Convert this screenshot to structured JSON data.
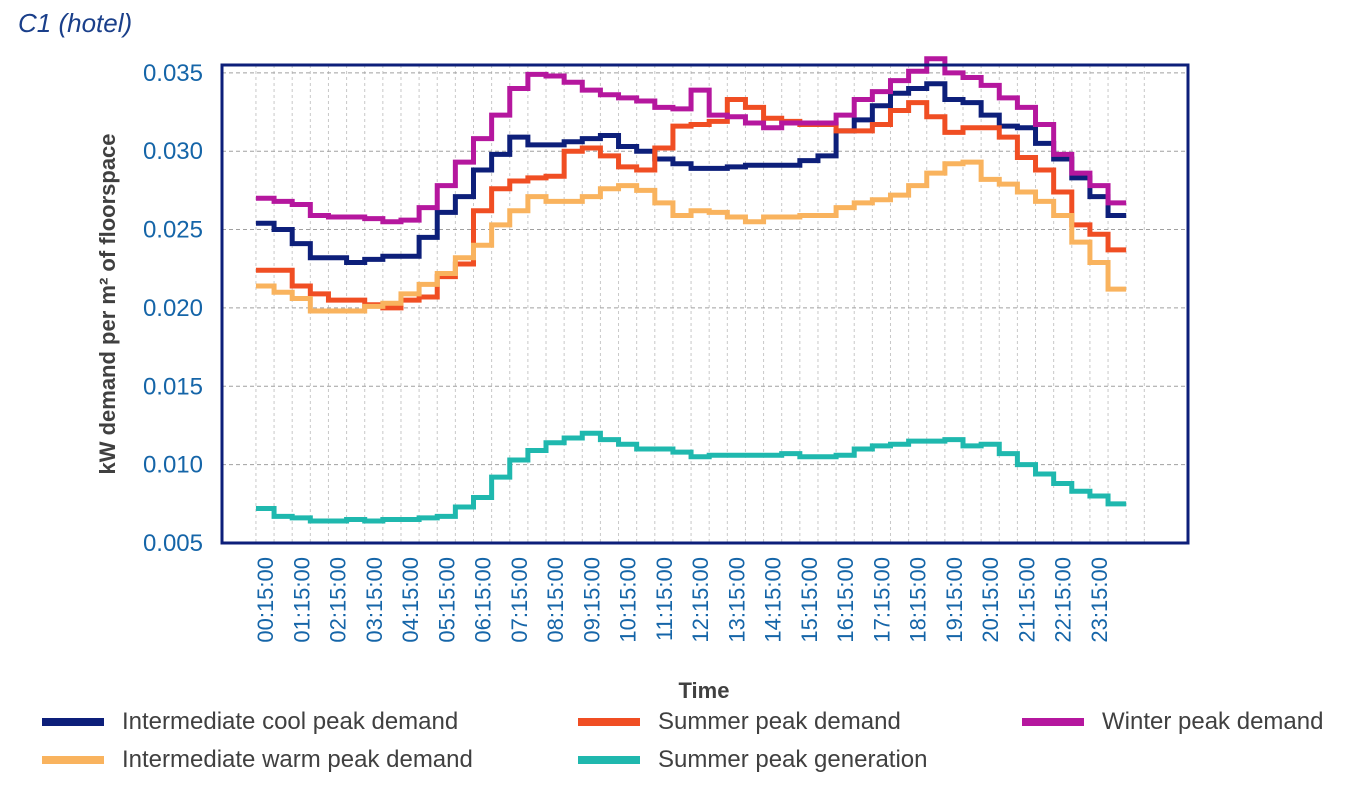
{
  "chart_data": {
    "type": "line",
    "step": true,
    "title": "C1 (hotel)",
    "xlabel": "Time",
    "ylabel": "kW demand per m² of floorspace",
    "ylim": [
      0.005,
      0.0355
    ],
    "yticks": [
      "0.005",
      "0.010",
      "0.015",
      "0.020",
      "0.025",
      "0.030",
      "0.035"
    ],
    "grid": true,
    "legend_position": "bottom",
    "x": [
      "00:15:00",
      "00:45:00",
      "01:15:00",
      "01:45:00",
      "02:15:00",
      "02:45:00",
      "03:15:00",
      "03:45:00",
      "04:15:00",
      "04:45:00",
      "05:15:00",
      "05:45:00",
      "06:15:00",
      "06:45:00",
      "07:15:00",
      "07:45:00",
      "08:15:00",
      "08:45:00",
      "09:15:00",
      "09:45:00",
      "10:15:00",
      "10:45:00",
      "11:15:00",
      "11:45:00",
      "12:15:00",
      "12:45:00",
      "13:15:00",
      "13:45:00",
      "14:15:00",
      "14:45:00",
      "15:15:00",
      "15:45:00",
      "16:15:00",
      "16:45:00",
      "17:15:00",
      "17:45:00",
      "18:15:00",
      "18:45:00",
      "19:15:00",
      "19:45:00",
      "20:15:00",
      "20:45:00",
      "21:15:00",
      "21:45:00",
      "22:15:00",
      "22:45:00",
      "23:15:00",
      "23:45:00"
    ],
    "xtick_labels": [
      "00:15:00",
      "01:15:00",
      "02:15:00",
      "03:15:00",
      "04:15:00",
      "05:15:00",
      "06:15:00",
      "07:15:00",
      "08:15:00",
      "09:15:00",
      "10:15:00",
      "11:15:00",
      "12:15:00",
      "13:15:00",
      "14:15:00",
      "15:15:00",
      "16:15:00",
      "17:15:00",
      "18:15:00",
      "19:15:00",
      "20:15:00",
      "21:15:00",
      "22:15:00",
      "23:15:00"
    ],
    "series": [
      {
        "name": "Intermediate cool peak demand",
        "color": "#0d1f7a",
        "values": [
          0.0254,
          0.025,
          0.0241,
          0.0232,
          0.0232,
          0.0229,
          0.0231,
          0.0233,
          0.0233,
          0.0245,
          0.0261,
          0.0271,
          0.0288,
          0.0298,
          0.0309,
          0.0304,
          0.0304,
          0.0306,
          0.0308,
          0.031,
          0.0303,
          0.03,
          0.0295,
          0.0292,
          0.0289,
          0.0289,
          0.029,
          0.0291,
          0.0291,
          0.0291,
          0.0294,
          0.0297,
          0.0313,
          0.032,
          0.0329,
          0.0337,
          0.034,
          0.0343,
          0.0333,
          0.0331,
          0.0323,
          0.0316,
          0.0315,
          0.0305,
          0.0295,
          0.0283,
          0.0271,
          0.0259
        ]
      },
      {
        "name": "Summer peak demand",
        "color": "#f04e23",
        "values": [
          0.0224,
          0.0224,
          0.0214,
          0.0209,
          0.0205,
          0.0205,
          0.0202,
          0.02,
          0.0205,
          0.0207,
          0.022,
          0.0228,
          0.0262,
          0.0276,
          0.0281,
          0.0283,
          0.0284,
          0.03,
          0.0302,
          0.0297,
          0.029,
          0.0288,
          0.0302,
          0.0316,
          0.0317,
          0.0319,
          0.0333,
          0.0328,
          0.0321,
          0.0319,
          0.0317,
          0.0317,
          0.0313,
          0.0313,
          0.0317,
          0.0326,
          0.0331,
          0.0322,
          0.0312,
          0.0315,
          0.0315,
          0.0309,
          0.0296,
          0.0288,
          0.0274,
          0.0253,
          0.0247,
          0.0237
        ]
      },
      {
        "name": "Winter peak demand",
        "color": "#b5179e",
        "values": [
          0.027,
          0.0268,
          0.0266,
          0.0259,
          0.0258,
          0.0258,
          0.0257,
          0.0255,
          0.0256,
          0.0264,
          0.0278,
          0.0293,
          0.0308,
          0.0323,
          0.034,
          0.0349,
          0.0348,
          0.0344,
          0.0339,
          0.0336,
          0.0334,
          0.0332,
          0.0328,
          0.0327,
          0.0339,
          0.0323,
          0.0322,
          0.0318,
          0.0315,
          0.0318,
          0.0318,
          0.0318,
          0.0323,
          0.0333,
          0.0338,
          0.0345,
          0.0351,
          0.0359,
          0.035,
          0.0347,
          0.0342,
          0.0334,
          0.0328,
          0.0317,
          0.0298,
          0.0286,
          0.0278,
          0.0267
        ]
      },
      {
        "name": "Intermediate warm peak demand",
        "color": "#f9b35e",
        "values": [
          0.0214,
          0.021,
          0.0206,
          0.0198,
          0.0198,
          0.0198,
          0.0201,
          0.0203,
          0.0209,
          0.0215,
          0.0222,
          0.0232,
          0.024,
          0.0253,
          0.0262,
          0.0271,
          0.0268,
          0.0268,
          0.0271,
          0.0276,
          0.0278,
          0.0275,
          0.0267,
          0.0259,
          0.0262,
          0.0261,
          0.0258,
          0.0255,
          0.0258,
          0.0258,
          0.0259,
          0.0259,
          0.0264,
          0.0267,
          0.0269,
          0.0272,
          0.0278,
          0.0286,
          0.0292,
          0.0293,
          0.0282,
          0.0279,
          0.0274,
          0.0268,
          0.0259,
          0.0242,
          0.0229,
          0.0212
        ]
      },
      {
        "name": "Summer peak generation",
        "color": "#1fb8ae",
        "values": [
          0.0072,
          0.0067,
          0.0066,
          0.0064,
          0.0064,
          0.0065,
          0.0064,
          0.0065,
          0.0065,
          0.0066,
          0.0067,
          0.0073,
          0.0079,
          0.0092,
          0.0103,
          0.0109,
          0.0114,
          0.0117,
          0.012,
          0.0116,
          0.0113,
          0.011,
          0.011,
          0.0108,
          0.0105,
          0.0106,
          0.0106,
          0.0106,
          0.0106,
          0.0107,
          0.0105,
          0.0105,
          0.0106,
          0.011,
          0.0112,
          0.0113,
          0.0115,
          0.0115,
          0.0116,
          0.0112,
          0.0113,
          0.0107,
          0.01,
          0.0094,
          0.0088,
          0.0083,
          0.008,
          0.0075
        ]
      }
    ],
    "legend_layout": [
      [
        0,
        1,
        2
      ],
      [
        3,
        4
      ]
    ]
  }
}
